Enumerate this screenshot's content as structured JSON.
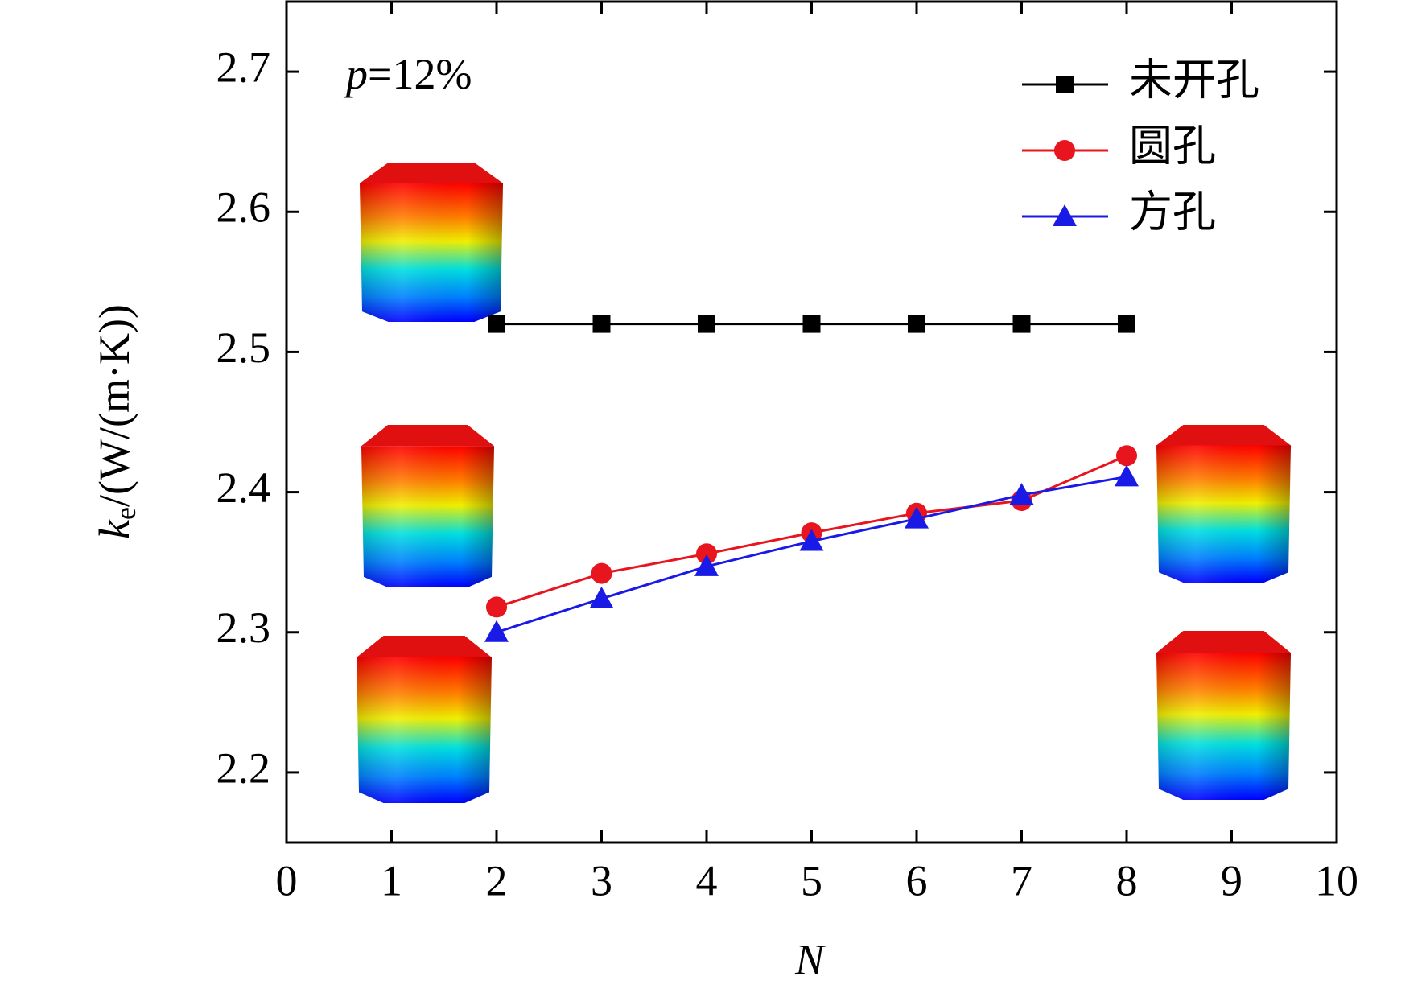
{
  "chart_data": {
    "type": "line",
    "y_label": {
      "symbol": "k",
      "subscript": "e",
      "unit": "/(W/(m·K))"
    },
    "x_label": "N",
    "annotation": {
      "symbol": "p",
      "text": "=12%"
    },
    "x": [
      2,
      3,
      4,
      5,
      6,
      7,
      8
    ],
    "series": [
      {
        "name": "未开孔",
        "color": "#000000",
        "marker": "square",
        "values": [
          2.52,
          2.52,
          2.52,
          2.52,
          2.52,
          2.52,
          2.52
        ]
      },
      {
        "name": "圆孔",
        "color": "#e8141e",
        "marker": "circle",
        "values": [
          2.318,
          2.342,
          2.356,
          2.371,
          2.385,
          2.394,
          2.426
        ]
      },
      {
        "name": "方孔",
        "color": "#1a1ae6",
        "marker": "triangle",
        "values": [
          2.3,
          2.324,
          2.347,
          2.365,
          2.381,
          2.398,
          2.411
        ]
      }
    ],
    "xlim": [
      0,
      10
    ],
    "xticks": [
      0,
      1,
      2,
      3,
      4,
      5,
      6,
      7,
      8,
      9,
      10
    ],
    "ylim": [
      2.15,
      2.75
    ],
    "yticks": [
      2.2,
      2.3,
      2.4,
      2.5,
      2.6,
      2.7
    ],
    "legend": "top-right",
    "grid": false
  }
}
